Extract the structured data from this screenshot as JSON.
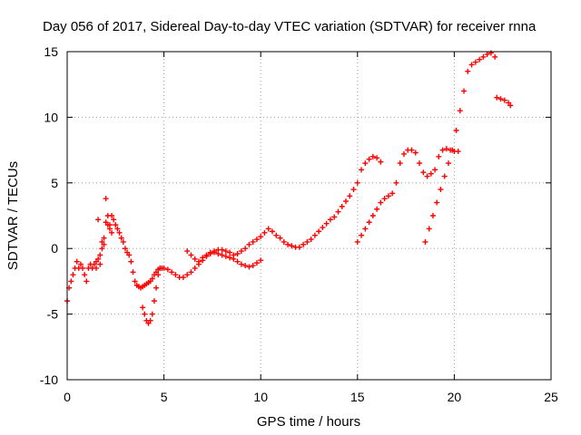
{
  "chart_data": {
    "type": "scatter",
    "title": "Day 056 of 2017, Sidereal Day-to-day VTEC variation (SDTVAR) for receiver rnna",
    "xlabel": "GPS time / hours",
    "ylabel": "SDTVAR / TECUs",
    "xlim": [
      0,
      25
    ],
    "ylim": [
      -10,
      15
    ],
    "xticks": [
      0,
      5,
      10,
      15,
      20,
      25
    ],
    "yticks": [
      -10,
      -5,
      0,
      5,
      10,
      15
    ],
    "xtick_labels": [
      "0",
      "5",
      "10",
      "15",
      "20",
      "25"
    ],
    "ytick_labels": [
      "-10",
      "-5",
      "0",
      "5",
      "10",
      "15"
    ],
    "grid": true,
    "marker": "plus",
    "color": "#ff0000",
    "series": [
      {
        "x": [
          0.0,
          0.1,
          0.2,
          0.3,
          0.4,
          0.5,
          0.6,
          0.7,
          0.8,
          0.9,
          1.0,
          1.1,
          1.2,
          1.3,
          1.4,
          1.5,
          1.6,
          1.7,
          1.8,
          1.9,
          2.0,
          2.1,
          2.2,
          2.3,
          2.4,
          2.5,
          2.6,
          2.7,
          2.8,
          2.9,
          3.0,
          3.1,
          3.2,
          3.3,
          3.4,
          3.5,
          3.6,
          3.7,
          3.8,
          3.9,
          4.0,
          4.1,
          4.2,
          4.3,
          4.4,
          4.5,
          4.6,
          4.7,
          4.8,
          4.9,
          5.0,
          5.2,
          5.4,
          5.6,
          5.8,
          6.0,
          6.2,
          6.4,
          6.6,
          6.8,
          7.0
        ],
        "y": [
          -4.0,
          -3.0,
          -2.5,
          -2.0,
          -1.5,
          -1.0,
          -1.5,
          -1.2,
          -1.5,
          -2.0,
          -2.5,
          -1.5,
          -1.2,
          -1.5,
          -1.2,
          -1.0,
          -0.8,
          -0.5,
          0.0,
          0.3,
          2.0,
          1.8,
          1.5,
          2.5,
          2.2,
          1.8,
          1.5,
          1.2,
          0.8,
          0.5,
          0.0,
          -0.3,
          -0.5,
          -1.0,
          -1.8,
          -2.5,
          -2.8,
          -2.9,
          -3.0,
          -2.9,
          -2.8,
          -2.7,
          -2.6,
          -2.5,
          -2.3,
          -2.0,
          -1.8,
          -1.6,
          -1.5,
          -1.5,
          -1.5,
          -1.6,
          -1.8,
          -2.0,
          -2.2,
          -2.2,
          -2.0,
          -1.8,
          -1.5,
          -1.2,
          -0.9
        ]
      },
      {
        "x": [
          3.9,
          4.0,
          4.1,
          4.2,
          4.3,
          4.4,
          4.5,
          4.6,
          4.7,
          4.8
        ],
        "y": [
          -4.5,
          -5.0,
          -5.5,
          -5.7,
          -5.5,
          -5.0,
          -4.0,
          -3.0,
          -2.0,
          -1.5
        ]
      },
      {
        "x": [
          1.5,
          1.6,
          1.7,
          1.8,
          1.9,
          2.0,
          2.1,
          2.2,
          2.3
        ],
        "y": [
          -1.5,
          2.2,
          -1.2,
          0.5,
          0.8,
          3.8,
          2.5,
          1.8,
          1.2
        ]
      },
      {
        "x": [
          7.0,
          7.2,
          7.4,
          7.6,
          7.8,
          8.0,
          8.2,
          8.4,
          8.6,
          8.8,
          9.0,
          9.2,
          9.4,
          9.6,
          9.8,
          10.0,
          10.2,
          10.4,
          10.6,
          10.8,
          11.0,
          11.2,
          11.4,
          11.6,
          11.8,
          12.0,
          12.2,
          12.4,
          12.6,
          12.8,
          13.0,
          13.2,
          13.4,
          13.6,
          13.8,
          14.0,
          14.2,
          14.4,
          14.6,
          14.8,
          15.0,
          15.2,
          15.4,
          15.6,
          15.8,
          16.0,
          16.2
        ],
        "y": [
          -0.7,
          -0.5,
          -0.3,
          -0.2,
          -0.1,
          -0.1,
          -0.2,
          -0.3,
          -0.5,
          -0.4,
          -0.2,
          0.0,
          0.3,
          0.5,
          0.7,
          0.9,
          1.2,
          1.5,
          1.3,
          1.0,
          0.8,
          0.5,
          0.3,
          0.2,
          0.1,
          0.1,
          0.3,
          0.5,
          0.7,
          1.0,
          1.3,
          1.6,
          1.9,
          2.2,
          2.4,
          2.8,
          3.2,
          3.6,
          4.0,
          4.5,
          5.0,
          6.0,
          6.5,
          6.8,
          7.0,
          6.9,
          6.6
        ]
      },
      {
        "x": [
          6.2,
          6.4,
          6.6,
          6.8,
          7.0,
          7.2,
          7.4,
          7.6,
          7.8,
          8.0,
          8.2,
          8.4,
          8.6,
          8.8,
          9.0,
          9.2,
          9.4,
          9.6,
          9.8,
          10.0
        ],
        "y": [
          -0.2,
          -0.5,
          -0.8,
          -1.0,
          -0.9,
          -0.6,
          -0.4,
          -0.3,
          -0.4,
          -0.5,
          -0.6,
          -0.7,
          -0.8,
          -1.0,
          -1.2,
          -1.3,
          -1.4,
          -1.3,
          -1.1,
          -0.9
        ]
      },
      {
        "x": [
          15.0,
          15.2,
          15.4,
          15.6,
          15.8,
          16.0,
          16.2,
          16.4,
          16.6,
          16.8,
          17.0,
          17.2,
          17.4,
          17.6,
          17.8,
          18.0,
          18.2,
          18.4,
          18.6,
          18.8,
          19.0,
          19.2,
          19.4,
          19.6,
          19.8,
          20.0,
          20.2
        ],
        "y": [
          0.5,
          1.0,
          1.5,
          2.0,
          2.5,
          3.0,
          3.5,
          3.8,
          4.0,
          4.2,
          5.0,
          6.5,
          7.2,
          7.5,
          7.5,
          7.3,
          6.5,
          5.8,
          5.5,
          5.7,
          6.0,
          7.0,
          7.5,
          7.6,
          7.5,
          7.4,
          7.4
        ]
      },
      {
        "x": [
          18.5,
          18.7,
          18.9,
          19.1,
          19.3,
          19.5,
          19.7,
          19.9,
          20.1,
          20.3,
          20.5,
          20.7,
          20.9,
          21.1,
          21.3,
          21.5,
          21.7,
          21.9,
          22.1
        ],
        "y": [
          0.5,
          1.5,
          2.5,
          3.5,
          4.5,
          5.5,
          6.5,
          7.5,
          9.0,
          10.5,
          12.0,
          13.5,
          14.0,
          14.2,
          14.4,
          14.6,
          14.8,
          14.9,
          14.6
        ]
      },
      {
        "x": [
          22.2,
          22.4,
          22.6,
          22.8,
          22.9
        ],
        "y": [
          11.5,
          11.4,
          11.3,
          11.1,
          10.9
        ]
      }
    ]
  }
}
